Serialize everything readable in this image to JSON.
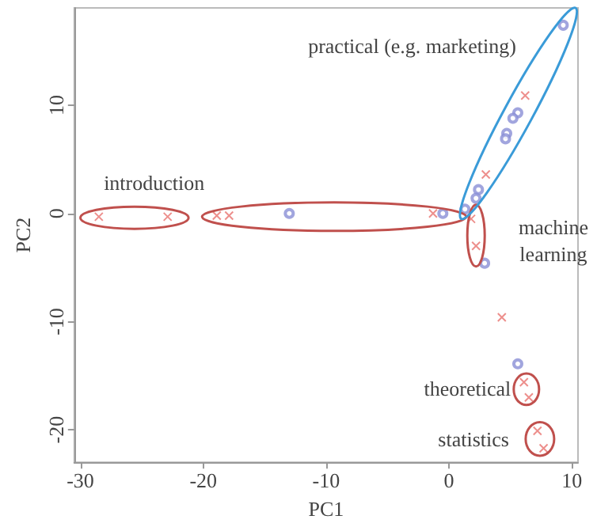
{
  "chart_data": {
    "type": "scatter",
    "xlabel": "PC1",
    "ylabel": "PC2",
    "xlim": [
      -30.5,
      10.5
    ],
    "ylim": [
      -23,
      19
    ],
    "xticks": [
      -30,
      -20,
      -10,
      0,
      10
    ],
    "yticks": [
      -20,
      -10,
      0,
      10
    ],
    "grid": false,
    "series": [
      {
        "color": "#e8736f",
        "marker": "cross",
        "x": [
          -28.5,
          -22.9,
          -18.9,
          -17.9,
          -1.3,
          1.8,
          2.2,
          3.0,
          6.2,
          4.3,
          6.1,
          6.5,
          7.2,
          7.7
        ],
        "values": [
          -0.3,
          -0.3,
          -0.2,
          -0.2,
          0,
          -0.5,
          -3,
          3.6,
          10.9,
          -9.6,
          -15.6,
          -17,
          -20.1,
          -21.7
        ]
      },
      {
        "color": "#8a8fd6",
        "marker": "circle",
        "x": [
          -13,
          -0.5,
          2.9,
          5.6,
          9.3,
          5.6,
          5.2,
          4.7,
          4.6,
          2.4,
          2.2,
          1.3
        ],
        "values": [
          0,
          0,
          -4.6,
          -13.9,
          17.4,
          9.3,
          8.8,
          7.4,
          6.9,
          2.2,
          1.4,
          0.4
        ]
      }
    ],
    "annotations": [
      "practical (e.g. marketing)",
      "introduction",
      "machine\nlearning",
      "theoretical",
      "statistics"
    ]
  }
}
